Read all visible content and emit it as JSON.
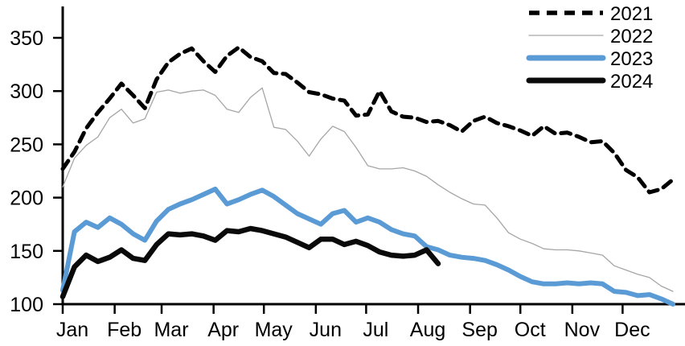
{
  "chart_data": {
    "type": "line",
    "title": "",
    "xlabel": "",
    "ylabel": "",
    "grid": false,
    "legend_position": "top-right",
    "x_axis": {
      "tick_labels": [
        "Jan",
        "Feb",
        "Mar",
        "Apr",
        "May",
        "Jun",
        "Jul",
        "Aug",
        "Sep",
        "Oct",
        "Nov",
        "Dec"
      ],
      "month_start_day_offsets": [
        0,
        31,
        59,
        90,
        120,
        151,
        181,
        212,
        243,
        273,
        304,
        334
      ],
      "frequency": "weekly"
    },
    "y_axis": {
      "ticks": [
        100,
        150,
        200,
        250,
        300,
        350
      ],
      "min": 100,
      "max": 350
    },
    "series": [
      {
        "name": "2021",
        "color": "#000000",
        "style": "dashed",
        "stroke_width": 5,
        "weekly_values": [
          227,
          243,
          265,
          280,
          293,
          307,
          296,
          284,
          311,
          327,
          335,
          340,
          328,
          318,
          333,
          341,
          332,
          328,
          317,
          316,
          308,
          299,
          297,
          293,
          291,
          277,
          278,
          300,
          281,
          276,
          275,
          271,
          272,
          268,
          262,
          272,
          276,
          270,
          267,
          263,
          258,
          267,
          260,
          261,
          257,
          252,
          253,
          242,
          226,
          219,
          205,
          208,
          217
        ]
      },
      {
        "name": "2022",
        "color": "#a6a6a6",
        "style": "solid",
        "stroke_width": 1.3,
        "weekly_values": [
          210,
          237,
          249,
          257,
          275,
          283,
          270,
          274,
          299,
          301,
          298,
          300,
          301,
          296,
          283,
          280,
          294,
          303,
          266,
          264,
          253,
          239,
          255,
          267,
          262,
          247,
          230,
          227,
          227,
          228,
          225,
          220,
          212,
          205,
          199,
          194,
          193,
          181,
          167,
          161,
          157,
          152,
          151,
          151,
          150,
          148,
          146,
          136,
          132,
          128,
          125,
          117,
          112
        ]
      },
      {
        "name": "2023",
        "color": "#5b9bd5",
        "style": "solid",
        "stroke_width": 6,
        "weekly_values": [
          113,
          168,
          177,
          172,
          181,
          175,
          166,
          160,
          178,
          189,
          194,
          198,
          203,
          208,
          194,
          198,
          203,
          207,
          201,
          193,
          185,
          180,
          175,
          185,
          188,
          177,
          181,
          177,
          170,
          166,
          164,
          154,
          151,
          146,
          144,
          143,
          141,
          137,
          132,
          126,
          121,
          119,
          119,
          120,
          119,
          120,
          119,
          112,
          111,
          108,
          109,
          105,
          100
        ]
      },
      {
        "name": "2024",
        "color": "#0a0a0a",
        "style": "solid",
        "stroke_width": 6.5,
        "weekly_values": [
          107,
          135,
          146,
          140,
          144,
          151,
          143,
          141,
          156,
          166,
          165,
          166,
          164,
          160,
          169,
          168,
          171,
          169,
          166,
          163,
          158,
          153,
          161,
          161,
          156,
          159,
          155,
          149,
          146,
          145,
          146,
          151,
          138
        ]
      }
    ]
  }
}
